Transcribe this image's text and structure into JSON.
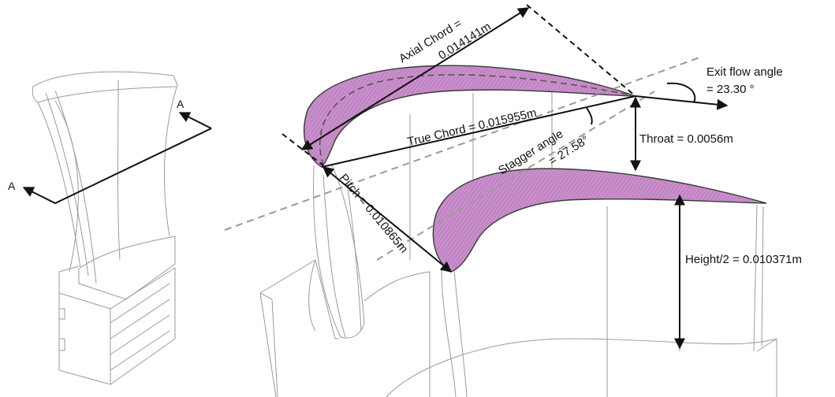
{
  "section_markers": {
    "top": "A",
    "left": "A"
  },
  "labels": {
    "axial_chord_line1": "Axial Chord =",
    "axial_chord_line2": "0.014141m",
    "true_chord": "True Chord = 0.015955m",
    "stagger_line1": "Stagger angle",
    "stagger_line2": "= 27.58°",
    "pitch": "Pitch = 0.010865m",
    "throat": "Throat = 0.0056m",
    "exit_line1": "Exit flow angle",
    "exit_line2": "= 23.30 °",
    "height": "Height/2 =  0.010371m"
  },
  "colors": {
    "blade_profile": "#c98fcb",
    "annotation": "#111111",
    "geometry_lines": "#9a9a9a"
  }
}
